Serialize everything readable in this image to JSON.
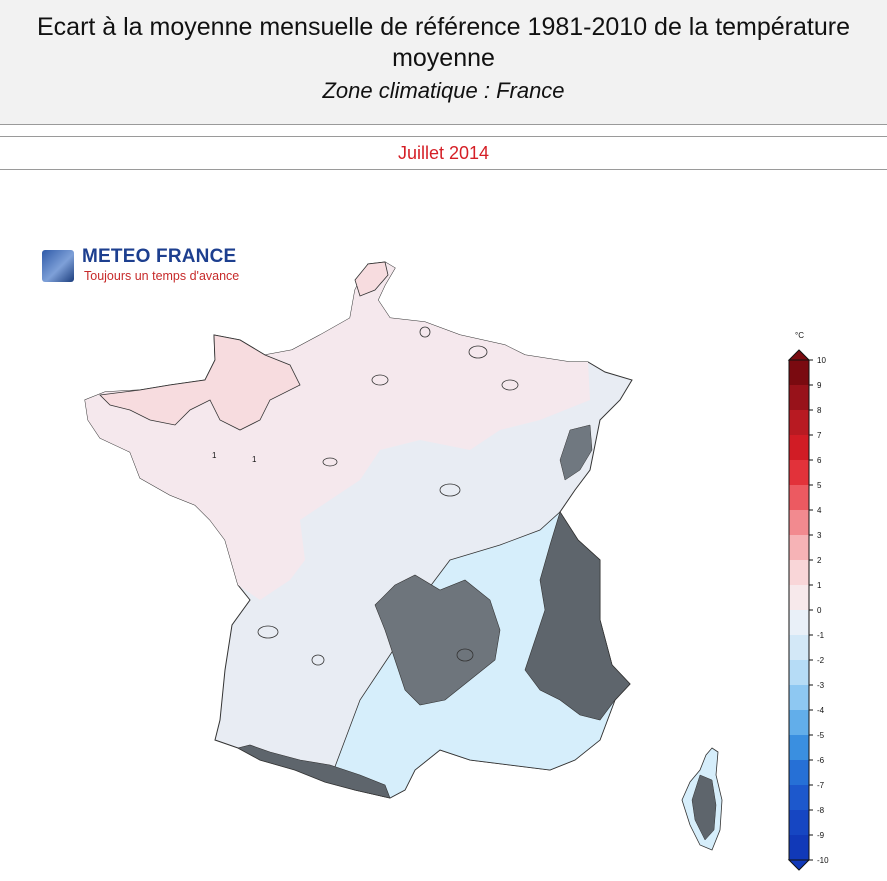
{
  "header": {
    "title": "Ecart à la moyenne mensuelle de référence 1981-2010 de la température moyenne",
    "subtitle": "Zone climatique : France"
  },
  "period": "Juillet 2014",
  "logo": {
    "name": "METEO FRANCE",
    "tagline": "Toujours un temps d'avance"
  },
  "colorbar": {
    "unit": "°C",
    "ticks": [
      "10",
      "9",
      "8",
      "7",
      "6",
      "5",
      "4",
      "3",
      "2",
      "1",
      "0",
      "-1",
      "-2",
      "-3",
      "-4",
      "-5",
      "-6",
      "-7",
      "-8",
      "-9",
      "-10"
    ],
    "colors": [
      "#7a0a10",
      "#98121a",
      "#b81a22",
      "#d11c25",
      "#e2323a",
      "#ec5a61",
      "#f28a8f",
      "#f6b3b6",
      "#f9d6d8",
      "#f7e9eb",
      "#e9f0f8",
      "#d3e8f7",
      "#b6dcf6",
      "#8ec8f2",
      "#62aeea",
      "#3a8fe0",
      "#2670d6",
      "#1d58cc",
      "#1646c2",
      "#1139b8"
    ]
  },
  "map_labels": [
    "1",
    "1"
  ]
}
